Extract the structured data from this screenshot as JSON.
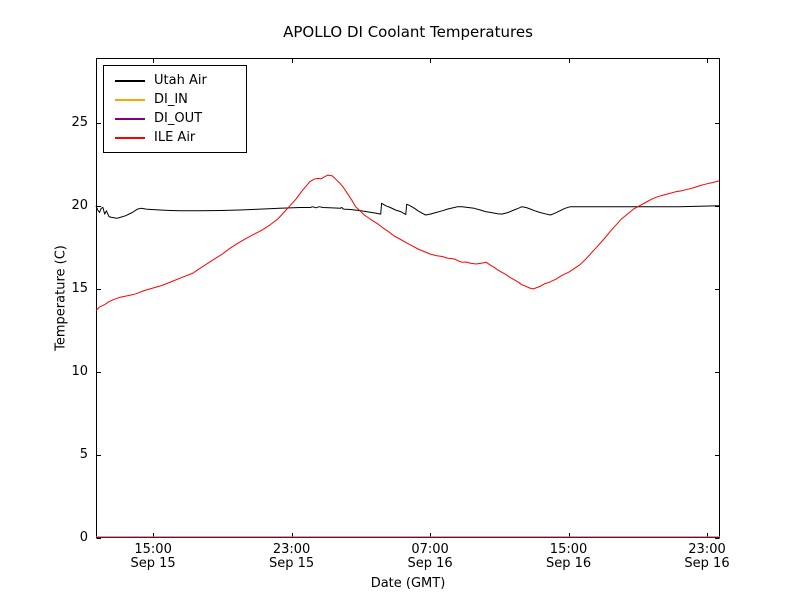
{
  "title": "APOLLO DI Coolant Temperatures",
  "axes": {
    "xlabel": "Date (GMT)",
    "ylabel": "Temperature (C)"
  },
  "chart_data": {
    "type": "line",
    "title": "APOLLO DI Coolant Temperatures",
    "xlabel": "Date (GMT)",
    "ylabel": "Temperature (C)",
    "x_unit": "hours since Sep 15 00:00 GMT",
    "xlim": [
      11.7,
      47.75
    ],
    "ylim": [
      0,
      28.9
    ],
    "grid": false,
    "legend_position": "upper left",
    "x_ticks": [
      {
        "t": 15,
        "time": "15:00",
        "date": "Sep 15"
      },
      {
        "t": 23,
        "time": "23:00",
        "date": "Sep 15"
      },
      {
        "t": 31,
        "time": "07:00",
        "date": "Sep 16"
      },
      {
        "t": 39,
        "time": "15:00",
        "date": "Sep 16"
      },
      {
        "t": 47,
        "time": "23:00",
        "date": "Sep 16"
      }
    ],
    "y_ticks": [
      0,
      5,
      10,
      15,
      20,
      25
    ],
    "series": [
      {
        "name": "Utah Air",
        "color": "#000000",
        "points": [
          [
            11.7,
            20.0
          ],
          [
            11.8,
            19.75
          ],
          [
            11.9,
            19.6
          ],
          [
            12.0,
            19.85
          ],
          [
            12.1,
            19.9
          ],
          [
            12.2,
            19.5
          ],
          [
            12.3,
            19.7
          ],
          [
            12.45,
            19.35
          ],
          [
            12.6,
            19.3
          ],
          [
            12.9,
            19.25
          ],
          [
            13.1,
            19.3
          ],
          [
            13.4,
            19.4
          ],
          [
            13.8,
            19.6
          ],
          [
            14.1,
            19.8
          ],
          [
            14.3,
            19.85
          ],
          [
            14.6,
            19.8
          ],
          [
            14.9,
            19.78
          ],
          [
            15.4,
            19.75
          ],
          [
            16.0,
            19.72
          ],
          [
            16.6,
            19.7
          ],
          [
            17.7,
            19.7
          ],
          [
            18.9,
            19.72
          ],
          [
            20.0,
            19.75
          ],
          [
            21.2,
            19.8
          ],
          [
            22.3,
            19.85
          ],
          [
            23.5,
            19.9
          ],
          [
            24.1,
            19.9
          ],
          [
            24.2,
            19.95
          ],
          [
            24.4,
            19.88
          ],
          [
            24.6,
            19.95
          ],
          [
            24.8,
            19.9
          ],
          [
            25.2,
            19.88
          ],
          [
            25.8,
            19.85
          ],
          [
            25.9,
            19.9
          ],
          [
            26.0,
            19.8
          ],
          [
            26.4,
            19.78
          ],
          [
            27.0,
            19.7
          ],
          [
            27.5,
            19.62
          ],
          [
            27.9,
            19.55
          ],
          [
            28.15,
            19.5
          ],
          [
            28.2,
            20.15
          ],
          [
            28.45,
            20.0
          ],
          [
            28.7,
            19.9
          ],
          [
            29.0,
            19.75
          ],
          [
            29.3,
            19.65
          ],
          [
            29.55,
            19.5
          ],
          [
            29.6,
            19.48
          ],
          [
            29.65,
            20.1
          ],
          [
            29.85,
            20.0
          ],
          [
            30.1,
            19.85
          ],
          [
            30.3,
            19.7
          ],
          [
            30.55,
            19.55
          ],
          [
            30.75,
            19.45
          ],
          [
            31.0,
            19.5
          ],
          [
            31.35,
            19.6
          ],
          [
            31.7,
            19.7
          ],
          [
            32.0,
            19.8
          ],
          [
            32.4,
            19.9
          ],
          [
            32.6,
            19.95
          ],
          [
            32.85,
            19.95
          ],
          [
            33.2,
            19.9
          ],
          [
            33.55,
            19.85
          ],
          [
            33.9,
            19.75
          ],
          [
            34.2,
            19.65
          ],
          [
            34.6,
            19.58
          ],
          [
            34.9,
            19.52
          ],
          [
            35.15,
            19.5
          ],
          [
            35.5,
            19.6
          ],
          [
            35.85,
            19.75
          ],
          [
            36.1,
            19.85
          ],
          [
            36.3,
            19.95
          ],
          [
            36.55,
            19.9
          ],
          [
            36.8,
            19.8
          ],
          [
            37.05,
            19.7
          ],
          [
            37.35,
            19.6
          ],
          [
            37.65,
            19.52
          ],
          [
            37.95,
            19.45
          ],
          [
            38.2,
            19.55
          ],
          [
            38.5,
            19.7
          ],
          [
            38.8,
            19.85
          ],
          [
            39.1,
            19.95
          ],
          [
            39.7,
            19.95
          ],
          [
            40.8,
            19.95
          ],
          [
            43.1,
            19.95
          ],
          [
            45.4,
            19.95
          ],
          [
            47.7,
            20.0
          ]
        ]
      },
      {
        "name": "DI_IN",
        "color": "#ffa500",
        "points": [
          [
            11.7,
            0
          ],
          [
            47.75,
            0
          ]
        ]
      },
      {
        "name": "DI_OUT",
        "color": "#800080",
        "points": [
          [
            11.7,
            0
          ],
          [
            47.75,
            0
          ]
        ]
      },
      {
        "name": "ILE Air",
        "color": "#ff0000",
        "points": [
          [
            11.7,
            13.7
          ],
          [
            11.9,
            13.9
          ],
          [
            12.2,
            14.05
          ],
          [
            12.4,
            14.2
          ],
          [
            12.7,
            14.35
          ],
          [
            13.1,
            14.5
          ],
          [
            13.6,
            14.6
          ],
          [
            14.0,
            14.7
          ],
          [
            14.5,
            14.9
          ],
          [
            15.0,
            15.05
          ],
          [
            15.5,
            15.2
          ],
          [
            16.1,
            15.45
          ],
          [
            16.7,
            15.7
          ],
          [
            17.3,
            15.95
          ],
          [
            17.8,
            16.3
          ],
          [
            18.4,
            16.7
          ],
          [
            19.0,
            17.1
          ],
          [
            19.45,
            17.45
          ],
          [
            19.9,
            17.75
          ],
          [
            20.4,
            18.05
          ],
          [
            20.85,
            18.3
          ],
          [
            21.3,
            18.55
          ],
          [
            21.75,
            18.85
          ],
          [
            22.2,
            19.2
          ],
          [
            22.55,
            19.6
          ],
          [
            22.9,
            20.0
          ],
          [
            23.25,
            20.4
          ],
          [
            23.6,
            20.9
          ],
          [
            23.85,
            21.2
          ],
          [
            24.05,
            21.45
          ],
          [
            24.3,
            21.6
          ],
          [
            24.5,
            21.65
          ],
          [
            24.7,
            21.62
          ],
          [
            24.9,
            21.75
          ],
          [
            25.1,
            21.85
          ],
          [
            25.35,
            21.8
          ],
          [
            25.55,
            21.6
          ],
          [
            25.8,
            21.35
          ],
          [
            26.0,
            21.1
          ],
          [
            26.25,
            20.7
          ],
          [
            26.5,
            20.3
          ],
          [
            26.7,
            19.95
          ],
          [
            26.95,
            19.7
          ],
          [
            27.2,
            19.45
          ],
          [
            27.4,
            19.3
          ],
          [
            27.7,
            19.1
          ],
          [
            28.0,
            18.9
          ],
          [
            28.3,
            18.65
          ],
          [
            28.6,
            18.45
          ],
          [
            28.9,
            18.2
          ],
          [
            29.25,
            18.0
          ],
          [
            29.6,
            17.8
          ],
          [
            29.95,
            17.6
          ],
          [
            30.3,
            17.4
          ],
          [
            30.65,
            17.25
          ],
          [
            31.0,
            17.1
          ],
          [
            31.35,
            17.0
          ],
          [
            31.7,
            16.95
          ],
          [
            32.0,
            16.85
          ],
          [
            32.4,
            16.8
          ],
          [
            32.6,
            16.7
          ],
          [
            32.85,
            16.6
          ],
          [
            33.1,
            16.62
          ],
          [
            33.3,
            16.55
          ],
          [
            33.65,
            16.5
          ],
          [
            34.0,
            16.55
          ],
          [
            34.25,
            16.6
          ],
          [
            34.45,
            16.45
          ],
          [
            34.7,
            16.3
          ],
          [
            34.9,
            16.15
          ],
          [
            35.15,
            16.0
          ],
          [
            35.4,
            15.85
          ],
          [
            35.6,
            15.7
          ],
          [
            35.85,
            15.55
          ],
          [
            36.1,
            15.4
          ],
          [
            36.3,
            15.25
          ],
          [
            36.55,
            15.15
          ],
          [
            36.75,
            15.05
          ],
          [
            36.95,
            15.0
          ],
          [
            37.1,
            15.05
          ],
          [
            37.35,
            15.15
          ],
          [
            37.6,
            15.3
          ],
          [
            37.9,
            15.4
          ],
          [
            38.3,
            15.6
          ],
          [
            38.6,
            15.8
          ],
          [
            39.0,
            16.0
          ],
          [
            39.3,
            16.2
          ],
          [
            39.65,
            16.45
          ],
          [
            40.0,
            16.8
          ],
          [
            40.35,
            17.2
          ],
          [
            40.7,
            17.6
          ],
          [
            41.05,
            18.0
          ],
          [
            41.4,
            18.45
          ],
          [
            41.75,
            18.85
          ],
          [
            42.05,
            19.2
          ],
          [
            42.4,
            19.5
          ],
          [
            42.75,
            19.8
          ],
          [
            43.1,
            20.0
          ],
          [
            43.45,
            20.2
          ],
          [
            43.8,
            20.4
          ],
          [
            44.15,
            20.55
          ],
          [
            44.5,
            20.65
          ],
          [
            44.85,
            20.75
          ],
          [
            45.2,
            20.85
          ],
          [
            45.5,
            20.9
          ],
          [
            45.9,
            21.0
          ],
          [
            46.25,
            21.1
          ],
          [
            46.55,
            21.2
          ],
          [
            46.9,
            21.3
          ],
          [
            47.3,
            21.4
          ],
          [
            47.7,
            21.5
          ]
        ]
      }
    ]
  },
  "legend": {
    "entries": [
      "Utah Air",
      "DI_IN",
      "DI_OUT",
      "ILE Air"
    ]
  },
  "colors": {
    "background": "#ffffff",
    "spine": "#000000",
    "bottom_spine_blend": "#6b2d33"
  }
}
